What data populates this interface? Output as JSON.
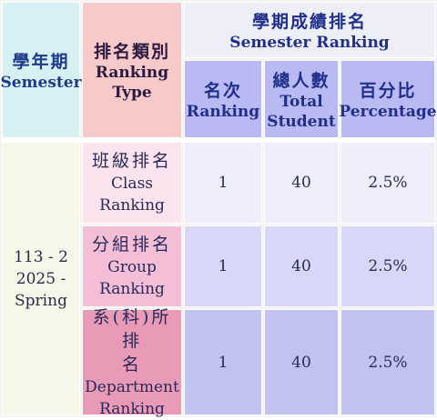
{
  "header": {
    "semester_zh": "學年期",
    "semester_en": "Semester",
    "type_zh": "排名類別",
    "type_en_1": "Ranking",
    "type_en_2": "Type",
    "semester_ranking_zh": "學期成績排名",
    "semester_ranking_en": "Semester Ranking",
    "rank_zh": "名次",
    "rank_en": "Ranking",
    "total_zh": "總人數",
    "total_en_1": "Total",
    "total_en_2": "Student",
    "pct_zh": "百分比",
    "pct_en": "Percentage"
  },
  "semester": {
    "line1": "113 - 2",
    "line2": "2025 -",
    "line3": "Spring"
  },
  "rows": [
    {
      "type_zh": "班級排名",
      "type_en_1": "Class",
      "type_en_2": "Ranking",
      "rank": "1",
      "total": "40",
      "percentage": "2.5%"
    },
    {
      "type_zh": "分組排名",
      "type_en_1": "Group",
      "type_en_2": "Ranking",
      "rank": "1",
      "total": "40",
      "percentage": "2.5%"
    },
    {
      "type_zh_1": "系(科)所排",
      "type_zh_2": "名",
      "type_en_1": "Department",
      "type_en_2": "Ranking",
      "rank": "1",
      "total": "40",
      "percentage": "2.5%"
    }
  ]
}
